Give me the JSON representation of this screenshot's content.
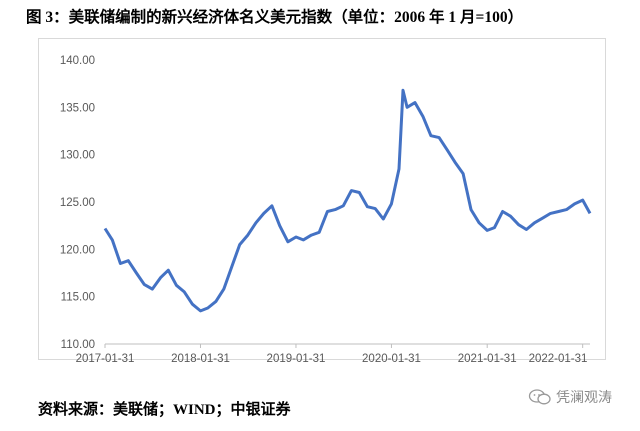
{
  "title": "图 3：美联储编制的新兴经济体名义美元指数（单位：2006 年 1 月=100）",
  "source": "资料来源：美联储；WIND；中银证券",
  "watermark": {
    "text": "凭澜观涛",
    "icon": "wechat-icon"
  },
  "colors": {
    "line": "#4472C4",
    "axis": "#bfbfbf",
    "frame": "#d9d9d9",
    "tick_text": "#595959"
  },
  "chart_data": {
    "type": "line",
    "title": "",
    "xlabel": "",
    "ylabel": "",
    "x_tick_labels": [
      "2017-01-31",
      "2018-01-31",
      "2019-01-31",
      "2020-01-31",
      "2021-01-31",
      "2022-01-31"
    ],
    "y_tick_labels": [
      "110.00",
      "115.00",
      "120.00",
      "125.00",
      "130.00",
      "135.00",
      "140.00"
    ],
    "ylim": [
      110,
      140
    ],
    "xlim": [
      "2017-01-31",
      "2022-02-28"
    ],
    "grid": false,
    "legend": "none",
    "series": [
      {
        "x": [
          "2017-01-31",
          "2017-02-28",
          "2017-03-31",
          "2017-04-30",
          "2017-05-31",
          "2017-06-30",
          "2017-07-31",
          "2017-08-31",
          "2017-09-30",
          "2017-10-31",
          "2017-11-30",
          "2017-12-31",
          "2018-01-31",
          "2018-02-28",
          "2018-03-31",
          "2018-04-30",
          "2018-05-31",
          "2018-06-30",
          "2018-07-31",
          "2018-08-31",
          "2018-09-30",
          "2018-10-31",
          "2018-11-30",
          "2018-12-31",
          "2019-01-31",
          "2019-02-28",
          "2019-03-31",
          "2019-04-30",
          "2019-05-31",
          "2019-06-30",
          "2019-07-31",
          "2019-08-31",
          "2019-09-30",
          "2019-10-31",
          "2019-11-30",
          "2019-12-31",
          "2020-01-31",
          "2020-02-29",
          "2020-03-15",
          "2020-03-31",
          "2020-04-30",
          "2020-05-31",
          "2020-06-30",
          "2020-07-31",
          "2020-08-31",
          "2020-09-30",
          "2020-10-31",
          "2020-11-30",
          "2020-12-31",
          "2021-01-31",
          "2021-02-28",
          "2021-03-31",
          "2021-04-30",
          "2021-05-31",
          "2021-06-30",
          "2021-07-31",
          "2021-08-31",
          "2021-09-30",
          "2021-10-31",
          "2021-11-30",
          "2021-12-31",
          "2022-01-31",
          "2022-02-28"
        ],
        "values": [
          122.2,
          121.0,
          118.5,
          118.8,
          117.5,
          116.3,
          115.8,
          117.0,
          117.8,
          116.2,
          115.5,
          114.2,
          113.5,
          113.8,
          114.5,
          115.8,
          118.2,
          120.5,
          121.5,
          122.8,
          123.8,
          124.6,
          122.5,
          120.8,
          121.3,
          121.0,
          121.5,
          121.8,
          124.0,
          124.2,
          124.6,
          126.2,
          126.0,
          124.5,
          124.3,
          123.2,
          124.8,
          128.5,
          136.8,
          135.0,
          135.5,
          134.0,
          132.0,
          131.8,
          130.5,
          129.2,
          128.0,
          124.2,
          122.8,
          122.0,
          122.3,
          124.0,
          123.5,
          122.6,
          122.1,
          122.8,
          123.3,
          123.8,
          124.0,
          124.2,
          124.8,
          125.2,
          123.8
        ]
      }
    ]
  }
}
